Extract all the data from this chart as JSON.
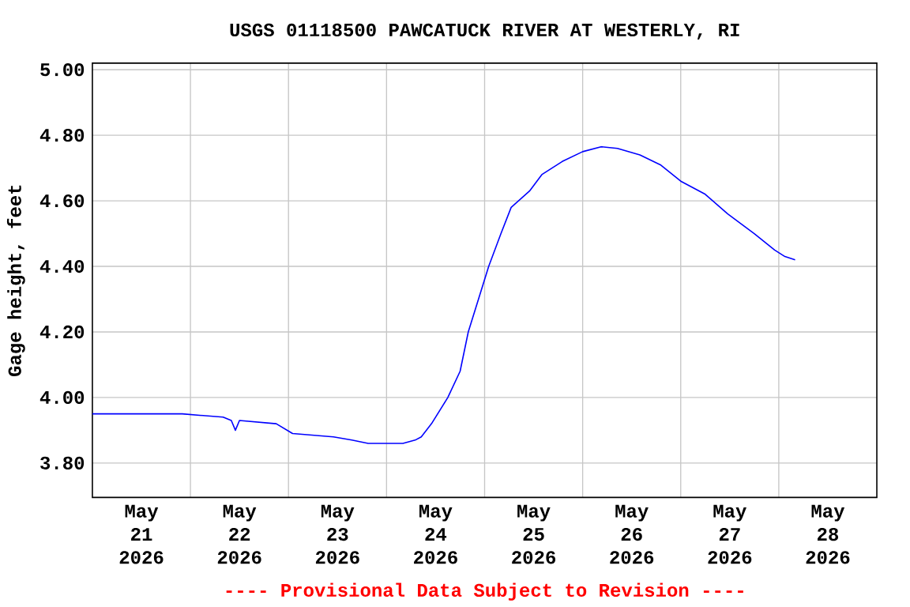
{
  "chart_data": {
    "type": "line",
    "title": "USGS 01118500 PAWCATUCK RIVER AT WESTERLY, RI",
    "ylabel": "Gage height, feet",
    "annotations": [
      "---- Provisional Data Subject to Revision ----"
    ],
    "grid": true,
    "xlim": [
      "2026-05-21T00:00",
      "2026-05-29T00:00"
    ],
    "xticks": [
      {
        "value": "2026-05-21T12:00",
        "label": "May 21 2026"
      },
      {
        "value": "2026-05-22T12:00",
        "label": "May 22 2026"
      },
      {
        "value": "2026-05-23T12:00",
        "label": "May 23 2026"
      },
      {
        "value": "2026-05-24T12:00",
        "label": "May 24 2026"
      },
      {
        "value": "2026-05-25T12:00",
        "label": "May 25 2026"
      },
      {
        "value": "2026-05-26T12:00",
        "label": "May 26 2026"
      },
      {
        "value": "2026-05-27T12:00",
        "label": "May 27 2026"
      },
      {
        "value": "2026-05-28T12:00",
        "label": "May 28 2026"
      },
      {
        "value": "2026-05-22T00:00",
        "label": null
      },
      {
        "value": "2026-05-23T00:00",
        "label": null
      },
      {
        "value": "2026-05-24T00:00",
        "label": null
      },
      {
        "value": "2026-05-25T00:00",
        "label": null
      },
      {
        "value": "2026-05-26T00:00",
        "label": null
      },
      {
        "value": "2026-05-27T00:00",
        "label": null
      },
      {
        "value": "2026-05-28T00:00",
        "label": null
      }
    ],
    "ylim": [
      3.695,
      5.02
    ],
    "yticks": [
      {
        "value": 3.8,
        "label": "3.80"
      },
      {
        "value": 4.0,
        "label": "4.00"
      },
      {
        "value": 4.2,
        "label": "4.20"
      },
      {
        "value": 4.4,
        "label": "4.40"
      },
      {
        "value": 4.6,
        "label": "4.60"
      },
      {
        "value": 4.8,
        "label": "4.80"
      },
      {
        "value": 5.0,
        "label": "5.00"
      }
    ],
    "series": [
      {
        "color": "#0000ff",
        "x": [
          "2026-05-21T00:00",
          "2026-05-21T22:00",
          "2026-05-22T08:00",
          "2026-05-22T10:00",
          "2026-05-22T11:00",
          "2026-05-22T12:00",
          "2026-05-22T21:00",
          "2026-05-23T01:00",
          "2026-05-23T11:00",
          "2026-05-23T15:30",
          "2026-05-23T19:30",
          "2026-05-24T04:00",
          "2026-05-24T07:00",
          "2026-05-24T08:30",
          "2026-05-24T11:00",
          "2026-05-24T13:00",
          "2026-05-24T15:00",
          "2026-05-24T18:00",
          "2026-05-24T20:00",
          "2026-05-24T22:30",
          "2026-05-25T01:00",
          "2026-05-25T04:00",
          "2026-05-25T06:30",
          "2026-05-25T11:00",
          "2026-05-25T14:00",
          "2026-05-25T19:00",
          "2026-05-26T00:00",
          "2026-05-26T04:30",
          "2026-05-26T08:30",
          "2026-05-26T14:00",
          "2026-05-26T19:00",
          "2026-05-27T00:00",
          "2026-05-27T06:00",
          "2026-05-27T11:30",
          "2026-05-27T18:00",
          "2026-05-27T23:00",
          "2026-05-28T01:30",
          "2026-05-28T04:00"
        ],
        "values": [
          3.95,
          3.95,
          3.94,
          3.93,
          3.9,
          3.93,
          3.92,
          3.89,
          3.88,
          3.87,
          3.86,
          3.86,
          3.87,
          3.88,
          3.92,
          3.96,
          4.0,
          4.08,
          4.2,
          4.3,
          4.4,
          4.5,
          4.58,
          4.63,
          4.68,
          4.72,
          4.75,
          4.765,
          4.76,
          4.74,
          4.71,
          4.66,
          4.62,
          4.56,
          4.5,
          4.45,
          4.43,
          4.42
        ]
      }
    ]
  }
}
